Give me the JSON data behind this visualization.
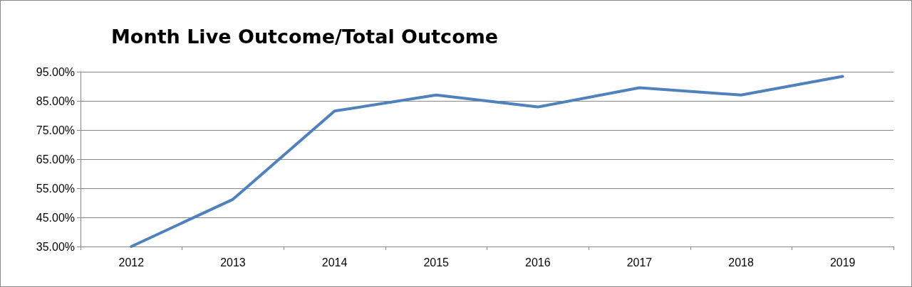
{
  "chart_data": {
    "type": "line",
    "title": "Month Live Outcome/Total Outcome",
    "categories": [
      "2012",
      "2013",
      "2014",
      "2015",
      "2016",
      "2017",
      "2018",
      "2019"
    ],
    "series": [
      {
        "color": "#4f81bd",
        "values": [
          35.0,
          51.2,
          81.5,
          87.0,
          82.9,
          89.5,
          87.0,
          93.4
        ]
      }
    ],
    "ylim": [
      35,
      95
    ],
    "yticks": [
      {
        "value": 35,
        "label": "35.00%"
      },
      {
        "value": 45,
        "label": "45.00%"
      },
      {
        "value": 55,
        "label": "55.00%"
      },
      {
        "value": 65,
        "label": "65.00%"
      },
      {
        "value": 75,
        "label": "75.00%"
      },
      {
        "value": 85,
        "label": "85.00%"
      },
      {
        "value": 95,
        "label": "95.00%"
      }
    ],
    "grid": "y",
    "marker": "none",
    "line_style": "solid"
  }
}
